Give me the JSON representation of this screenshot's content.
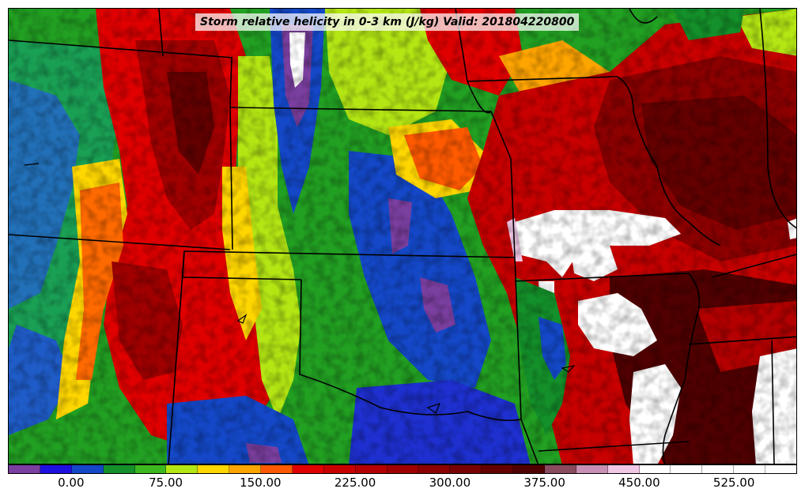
{
  "title": "Storm relative helicity in 0-3 km (J/kg) Valid: 201804220800",
  "colorbar": {
    "colors": [
      "#7b3fa0",
      "#1e10e0",
      "#1448c8",
      "#14902a",
      "#3cb81e",
      "#b4e614",
      "#ffd700",
      "#ffa500",
      "#ff5a00",
      "#e00000",
      "#c80000",
      "#b40000",
      "#a00000",
      "#8c0000",
      "#780000",
      "#640000",
      "#500000",
      "#8a4b5f",
      "#c890b4",
      "#f0c8e6",
      "#ffffff",
      "#ffffff",
      "#ffffff",
      "#ffffff",
      "#ffffff"
    ],
    "tick_labels": [
      "0.00",
      "75.00",
      "150.00",
      "225.00",
      "300.00",
      "375.00",
      "450.00",
      "525.00"
    ]
  }
}
